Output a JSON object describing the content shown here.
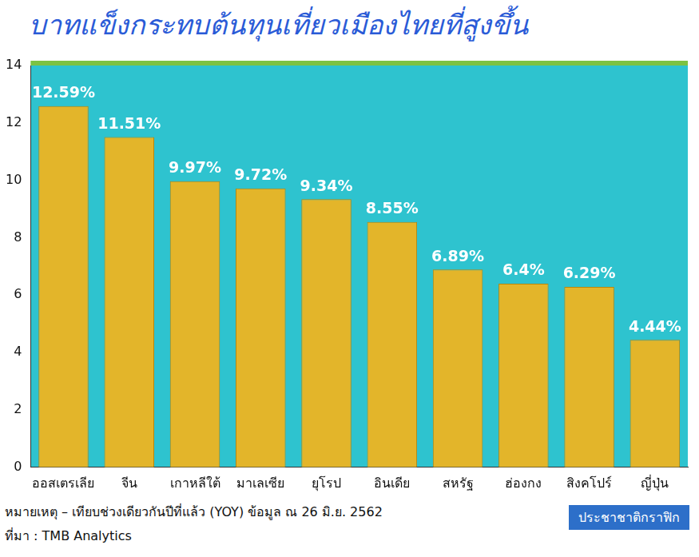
{
  "chart_data": {
    "type": "bar",
    "title": "บาทแข็งกระทบต้นทุนเที่ยวเมืองไทยที่สูงขึ้น",
    "categories": [
      "ออสเตรเลีย",
      "จีน",
      "เกาหลีใต้",
      "มาเลเซีย",
      "ยุโรป",
      "อินเดีย",
      "สหรัฐ",
      "ฮ่องกง",
      "สิงคโปร์",
      "ญี่ปุ่น"
    ],
    "values": [
      12.59,
      11.51,
      9.97,
      9.72,
      9.34,
      8.55,
      6.89,
      6.4,
      6.29,
      4.44
    ],
    "value_labels": [
      "12.59%",
      "11.51%",
      "9.97%",
      "9.72%",
      "9.34%",
      "8.55%",
      "6.89%",
      "6.4%",
      "6.29%",
      "4.44%"
    ],
    "color": "#e3b52a",
    "ylim": [
      0,
      14
    ],
    "yticks": [
      0,
      2,
      4,
      6,
      8,
      10,
      12,
      14
    ],
    "grid": false,
    "data_labels": true,
    "note": "หมายเหตุ – เทียบช่วงเดียวกันปีที่แล้ว (YOY) ข้อมูล ณ 26 มิ.ย. 2562",
    "source": "ที่มา : TMB Analytics",
    "credit": "ประชาชาติกราฟิก"
  }
}
